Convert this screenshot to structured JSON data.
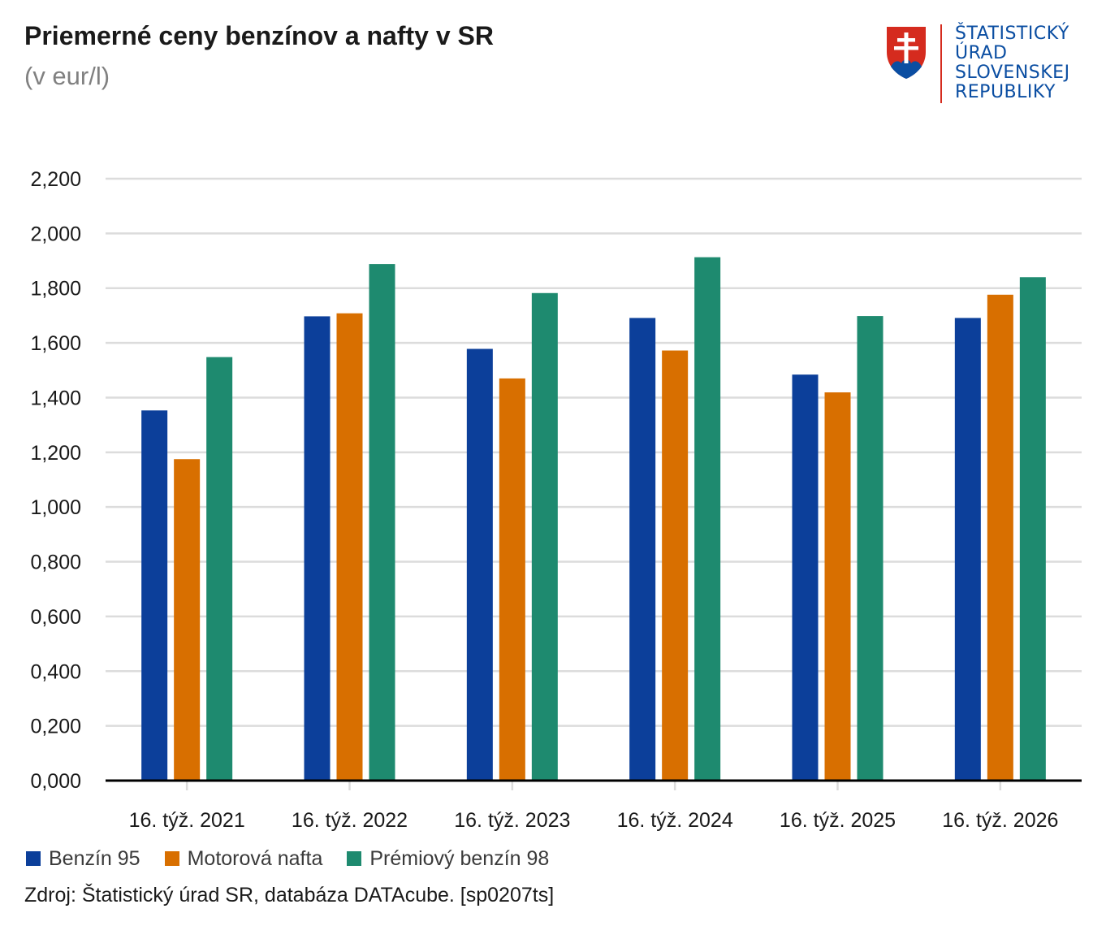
{
  "header": {
    "title": "Priemerné ceny benzínov a nafty v SR",
    "subtitle": "(v eur/l)"
  },
  "logo": {
    "line1": "ŠTATISTICKÝ",
    "line2": "ÚRAD",
    "line3": "SLOVENSKEJ",
    "line4": "REPUBLIKY",
    "colors": {
      "blue": "#0b4ea2",
      "red": "#d52b1e"
    }
  },
  "chart_data": {
    "type": "bar",
    "title": "Priemerné ceny benzínov a nafty v SR",
    "subtitle": "(v eur/l)",
    "xlabel": "",
    "ylabel": "",
    "ylim": [
      0,
      2.2
    ],
    "yticks": [
      0,
      0.2,
      0.4,
      0.6,
      0.8,
      1.0,
      1.2,
      1.4,
      1.6,
      1.8,
      2.0,
      2.2
    ],
    "ytick_labels": [
      "0,000",
      "0,200",
      "0,400",
      "0,600",
      "0,800",
      "1,000",
      "1,200",
      "1,400",
      "1,600",
      "1,800",
      "2,000",
      "2,200"
    ],
    "grid": true,
    "legend_position": "bottom-left",
    "categories": [
      "16. týž. 2021",
      "16. týž. 2022",
      "16. týž. 2023",
      "16. týž. 2024",
      "16. týž. 2025",
      "16. týž. 2026"
    ],
    "series": [
      {
        "name": "Benzín 95",
        "color": "#0c3f9a",
        "values": [
          1.353,
          1.697,
          1.578,
          1.691,
          1.484,
          1.691
        ]
      },
      {
        "name": "Motorová nafta",
        "color": "#d86f00",
        "values": [
          1.175,
          1.708,
          1.47,
          1.572,
          1.419,
          1.776
        ]
      },
      {
        "name": "Prémiový benzín 98",
        "color": "#1e8a6f",
        "values": [
          1.548,
          1.888,
          1.782,
          1.913,
          1.698,
          1.84
        ]
      }
    ]
  },
  "footer": {
    "source": "Zdroj: Štatistický úrad SR, databáza DATAcube. [sp0207ts]"
  }
}
